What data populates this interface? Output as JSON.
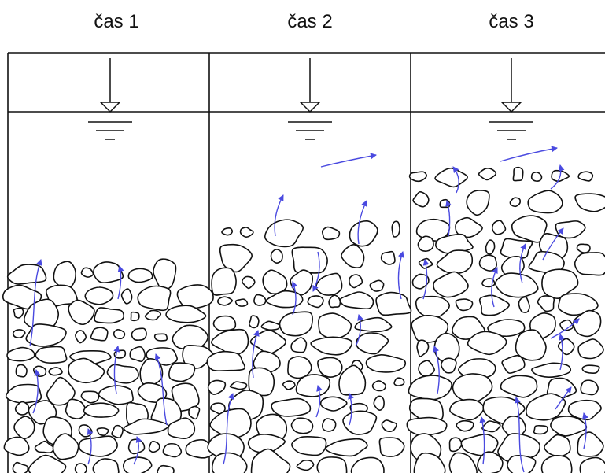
{
  "panels": [
    {
      "label": "čas 1"
    },
    {
      "label": "čas 2"
    },
    {
      "label": "čas 3"
    }
  ],
  "colors": {
    "line": "#111111",
    "flow_arrow": "#4a4ae0"
  }
}
